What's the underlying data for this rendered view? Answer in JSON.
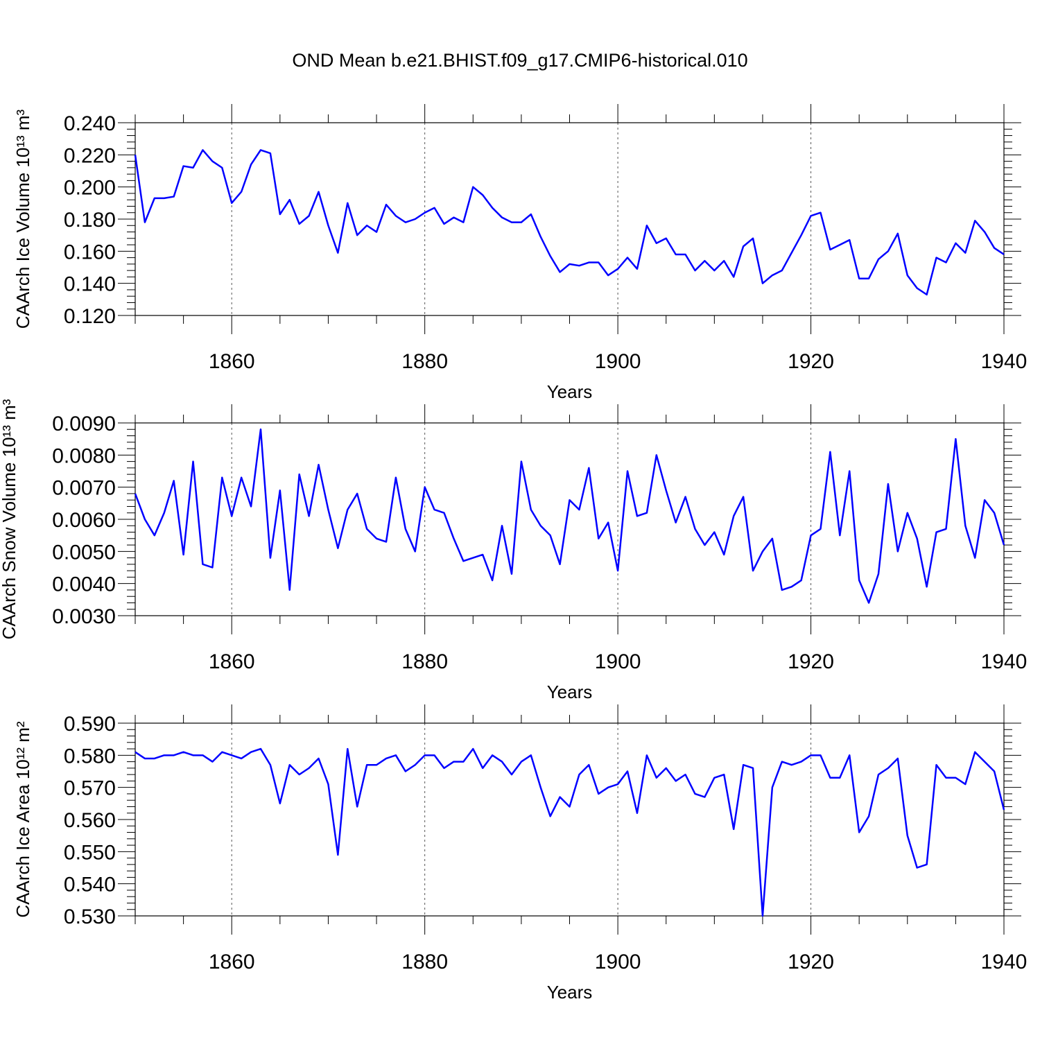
{
  "title": "OND Mean b.e21.BHIST.f09_g17.CMIP6-historical.010",
  "chart_data": [
    {
      "type": "line",
      "xlabel": "Years",
      "ylabel": "CAArch Ice Volume 10¹³ m³",
      "color": "#0000ff",
      "grid": true,
      "x": [
        1850,
        1851,
        1852,
        1853,
        1854,
        1855,
        1856,
        1857,
        1858,
        1859,
        1860,
        1861,
        1862,
        1863,
        1864,
        1865,
        1866,
        1867,
        1868,
        1869,
        1870,
        1871,
        1872,
        1873,
        1874,
        1875,
        1876,
        1877,
        1878,
        1879,
        1880,
        1881,
        1882,
        1883,
        1884,
        1885,
        1886,
        1887,
        1888,
        1889,
        1890,
        1891,
        1892,
        1893,
        1894,
        1895,
        1896,
        1897,
        1898,
        1899,
        1900,
        1901,
        1902,
        1903,
        1904,
        1905,
        1906,
        1907,
        1908,
        1909,
        1910,
        1911,
        1912,
        1913,
        1914,
        1915,
        1916,
        1917,
        1918,
        1919,
        1920,
        1921,
        1922,
        1923,
        1924,
        1925,
        1926,
        1927,
        1928,
        1929,
        1930,
        1931,
        1932,
        1933,
        1934,
        1935,
        1936,
        1937,
        1938,
        1939,
        1940
      ],
      "values": [
        0.22,
        0.178,
        0.193,
        0.193,
        0.194,
        0.213,
        0.212,
        0.223,
        0.216,
        0.212,
        0.19,
        0.197,
        0.214,
        0.223,
        0.221,
        0.183,
        0.192,
        0.177,
        0.182,
        0.197,
        0.176,
        0.159,
        0.19,
        0.17,
        0.176,
        0.172,
        0.189,
        0.182,
        0.178,
        0.18,
        0.184,
        0.187,
        0.177,
        0.181,
        0.178,
        0.2,
        0.195,
        0.187,
        0.181,
        0.178,
        0.178,
        0.183,
        0.169,
        0.157,
        0.147,
        0.152,
        0.151,
        0.153,
        0.153,
        0.145,
        0.149,
        0.156,
        0.149,
        0.176,
        0.165,
        0.168,
        0.158,
        0.158,
        0.148,
        0.154,
        0.148,
        0.154,
        0.144,
        0.163,
        0.168,
        0.14,
        0.145,
        0.148,
        0.159,
        0.17,
        0.182,
        0.184,
        0.161,
        0.164,
        0.167,
        0.143,
        0.143,
        0.155,
        0.16,
        0.171,
        0.145,
        0.137,
        0.133,
        0.156,
        0.153,
        0.165,
        0.159,
        0.179,
        0.172,
        0.162,
        0.158
      ],
      "xlim": [
        1850,
        1940
      ],
      "xticks": [
        1860,
        1880,
        1900,
        1920,
        1940
      ],
      "ylim": [
        0.12,
        0.24
      ],
      "yticks": [
        {
          "value": 0.12,
          "label": "0.120"
        },
        {
          "value": 0.14,
          "label": "0.140"
        },
        {
          "value": 0.16,
          "label": "0.160"
        },
        {
          "value": 0.18,
          "label": "0.180"
        },
        {
          "value": 0.2,
          "label": "0.200"
        },
        {
          "value": 0.22,
          "label": "0.220"
        },
        {
          "value": 0.24,
          "label": "0.240"
        }
      ]
    },
    {
      "type": "line",
      "xlabel": "Years",
      "ylabel": "CAArch Snow Volume 10¹³ m³",
      "color": "#0000ff",
      "grid": true,
      "x": [
        1850,
        1851,
        1852,
        1853,
        1854,
        1855,
        1856,
        1857,
        1858,
        1859,
        1860,
        1861,
        1862,
        1863,
        1864,
        1865,
        1866,
        1867,
        1868,
        1869,
        1870,
        1871,
        1872,
        1873,
        1874,
        1875,
        1876,
        1877,
        1878,
        1879,
        1880,
        1881,
        1882,
        1883,
        1884,
        1885,
        1886,
        1887,
        1888,
        1889,
        1890,
        1891,
        1892,
        1893,
        1894,
        1895,
        1896,
        1897,
        1898,
        1899,
        1900,
        1901,
        1902,
        1903,
        1904,
        1905,
        1906,
        1907,
        1908,
        1909,
        1910,
        1911,
        1912,
        1913,
        1914,
        1915,
        1916,
        1917,
        1918,
        1919,
        1920,
        1921,
        1922,
        1923,
        1924,
        1925,
        1926,
        1927,
        1928,
        1929,
        1930,
        1931,
        1932,
        1933,
        1934,
        1935,
        1936,
        1937,
        1938,
        1939,
        1940
      ],
      "values": [
        0.0068,
        0.006,
        0.0055,
        0.0062,
        0.0072,
        0.0049,
        0.0078,
        0.0046,
        0.0045,
        0.0073,
        0.0061,
        0.0073,
        0.0064,
        0.0088,
        0.0048,
        0.0069,
        0.0038,
        0.0074,
        0.0061,
        0.0077,
        0.0063,
        0.0051,
        0.0063,
        0.0068,
        0.0057,
        0.0054,
        0.0053,
        0.0073,
        0.0057,
        0.005,
        0.007,
        0.0063,
        0.0062,
        0.0054,
        0.0047,
        0.0048,
        0.0049,
        0.0041,
        0.0058,
        0.0043,
        0.0078,
        0.0063,
        0.0058,
        0.0055,
        0.0046,
        0.0066,
        0.0063,
        0.0076,
        0.0054,
        0.0059,
        0.0044,
        0.0075,
        0.0061,
        0.0062,
        0.008,
        0.0069,
        0.0059,
        0.0067,
        0.0057,
        0.0052,
        0.0056,
        0.0049,
        0.0061,
        0.0067,
        0.0044,
        0.005,
        0.0054,
        0.0038,
        0.0039,
        0.0041,
        0.0055,
        0.0057,
        0.0081,
        0.0055,
        0.0075,
        0.0041,
        0.0034,
        0.0043,
        0.0071,
        0.005,
        0.0062,
        0.0054,
        0.0039,
        0.0056,
        0.0057,
        0.0085,
        0.0058,
        0.0048,
        0.0066,
        0.0062,
        0.0052
      ],
      "xlim": [
        1850,
        1940
      ],
      "xticks": [
        1860,
        1880,
        1900,
        1920,
        1940
      ],
      "ylim": [
        0.003,
        0.009
      ],
      "yticks": [
        {
          "value": 0.003,
          "label": "0.0030"
        },
        {
          "value": 0.004,
          "label": "0.0040"
        },
        {
          "value": 0.005,
          "label": "0.0050"
        },
        {
          "value": 0.006,
          "label": "0.0060"
        },
        {
          "value": 0.007,
          "label": "0.0070"
        },
        {
          "value": 0.008,
          "label": "0.0080"
        },
        {
          "value": 0.009,
          "label": "0.0090"
        }
      ]
    },
    {
      "type": "line",
      "xlabel": "Years",
      "ylabel": "CAArch Ice Area 10¹² m²",
      "color": "#0000ff",
      "grid": true,
      "x": [
        1850,
        1851,
        1852,
        1853,
        1854,
        1855,
        1856,
        1857,
        1858,
        1859,
        1860,
        1861,
        1862,
        1863,
        1864,
        1865,
        1866,
        1867,
        1868,
        1869,
        1870,
        1871,
        1872,
        1873,
        1874,
        1875,
        1876,
        1877,
        1878,
        1879,
        1880,
        1881,
        1882,
        1883,
        1884,
        1885,
        1886,
        1887,
        1888,
        1889,
        1890,
        1891,
        1892,
        1893,
        1894,
        1895,
        1896,
        1897,
        1898,
        1899,
        1900,
        1901,
        1902,
        1903,
        1904,
        1905,
        1906,
        1907,
        1908,
        1909,
        1910,
        1911,
        1912,
        1913,
        1914,
        1915,
        1916,
        1917,
        1918,
        1919,
        1920,
        1921,
        1922,
        1923,
        1924,
        1925,
        1926,
        1927,
        1928,
        1929,
        1930,
        1931,
        1932,
        1933,
        1934,
        1935,
        1936,
        1937,
        1938,
        1939,
        1940
      ],
      "values": [
        0.581,
        0.579,
        0.579,
        0.58,
        0.58,
        0.581,
        0.58,
        0.58,
        0.578,
        0.581,
        0.58,
        0.579,
        0.581,
        0.582,
        0.577,
        0.565,
        0.577,
        0.574,
        0.576,
        0.579,
        0.571,
        0.549,
        0.582,
        0.564,
        0.577,
        0.577,
        0.579,
        0.58,
        0.575,
        0.577,
        0.58,
        0.58,
        0.576,
        0.578,
        0.578,
        0.582,
        0.576,
        0.58,
        0.578,
        0.574,
        0.578,
        0.58,
        0.57,
        0.561,
        0.567,
        0.564,
        0.574,
        0.577,
        0.568,
        0.57,
        0.571,
        0.575,
        0.562,
        0.58,
        0.573,
        0.576,
        0.572,
        0.574,
        0.568,
        0.567,
        0.573,
        0.574,
        0.557,
        0.577,
        0.576,
        0.53,
        0.57,
        0.578,
        0.577,
        0.578,
        0.58,
        0.58,
        0.573,
        0.573,
        0.58,
        0.556,
        0.561,
        0.574,
        0.576,
        0.579,
        0.555,
        0.545,
        0.546,
        0.577,
        0.573,
        0.573,
        0.571,
        0.581,
        0.578,
        0.575,
        0.563
      ],
      "xlim": [
        1850,
        1940
      ],
      "xticks": [
        1860,
        1880,
        1900,
        1920,
        1940
      ],
      "ylim": [
        0.53,
        0.59
      ],
      "yticks": [
        {
          "value": 0.53,
          "label": "0.530"
        },
        {
          "value": 0.54,
          "label": "0.540"
        },
        {
          "value": 0.55,
          "label": "0.550"
        },
        {
          "value": 0.56,
          "label": "0.560"
        },
        {
          "value": 0.57,
          "label": "0.570"
        },
        {
          "value": 0.58,
          "label": "0.580"
        },
        {
          "value": 0.59,
          "label": "0.590"
        }
      ]
    }
  ]
}
